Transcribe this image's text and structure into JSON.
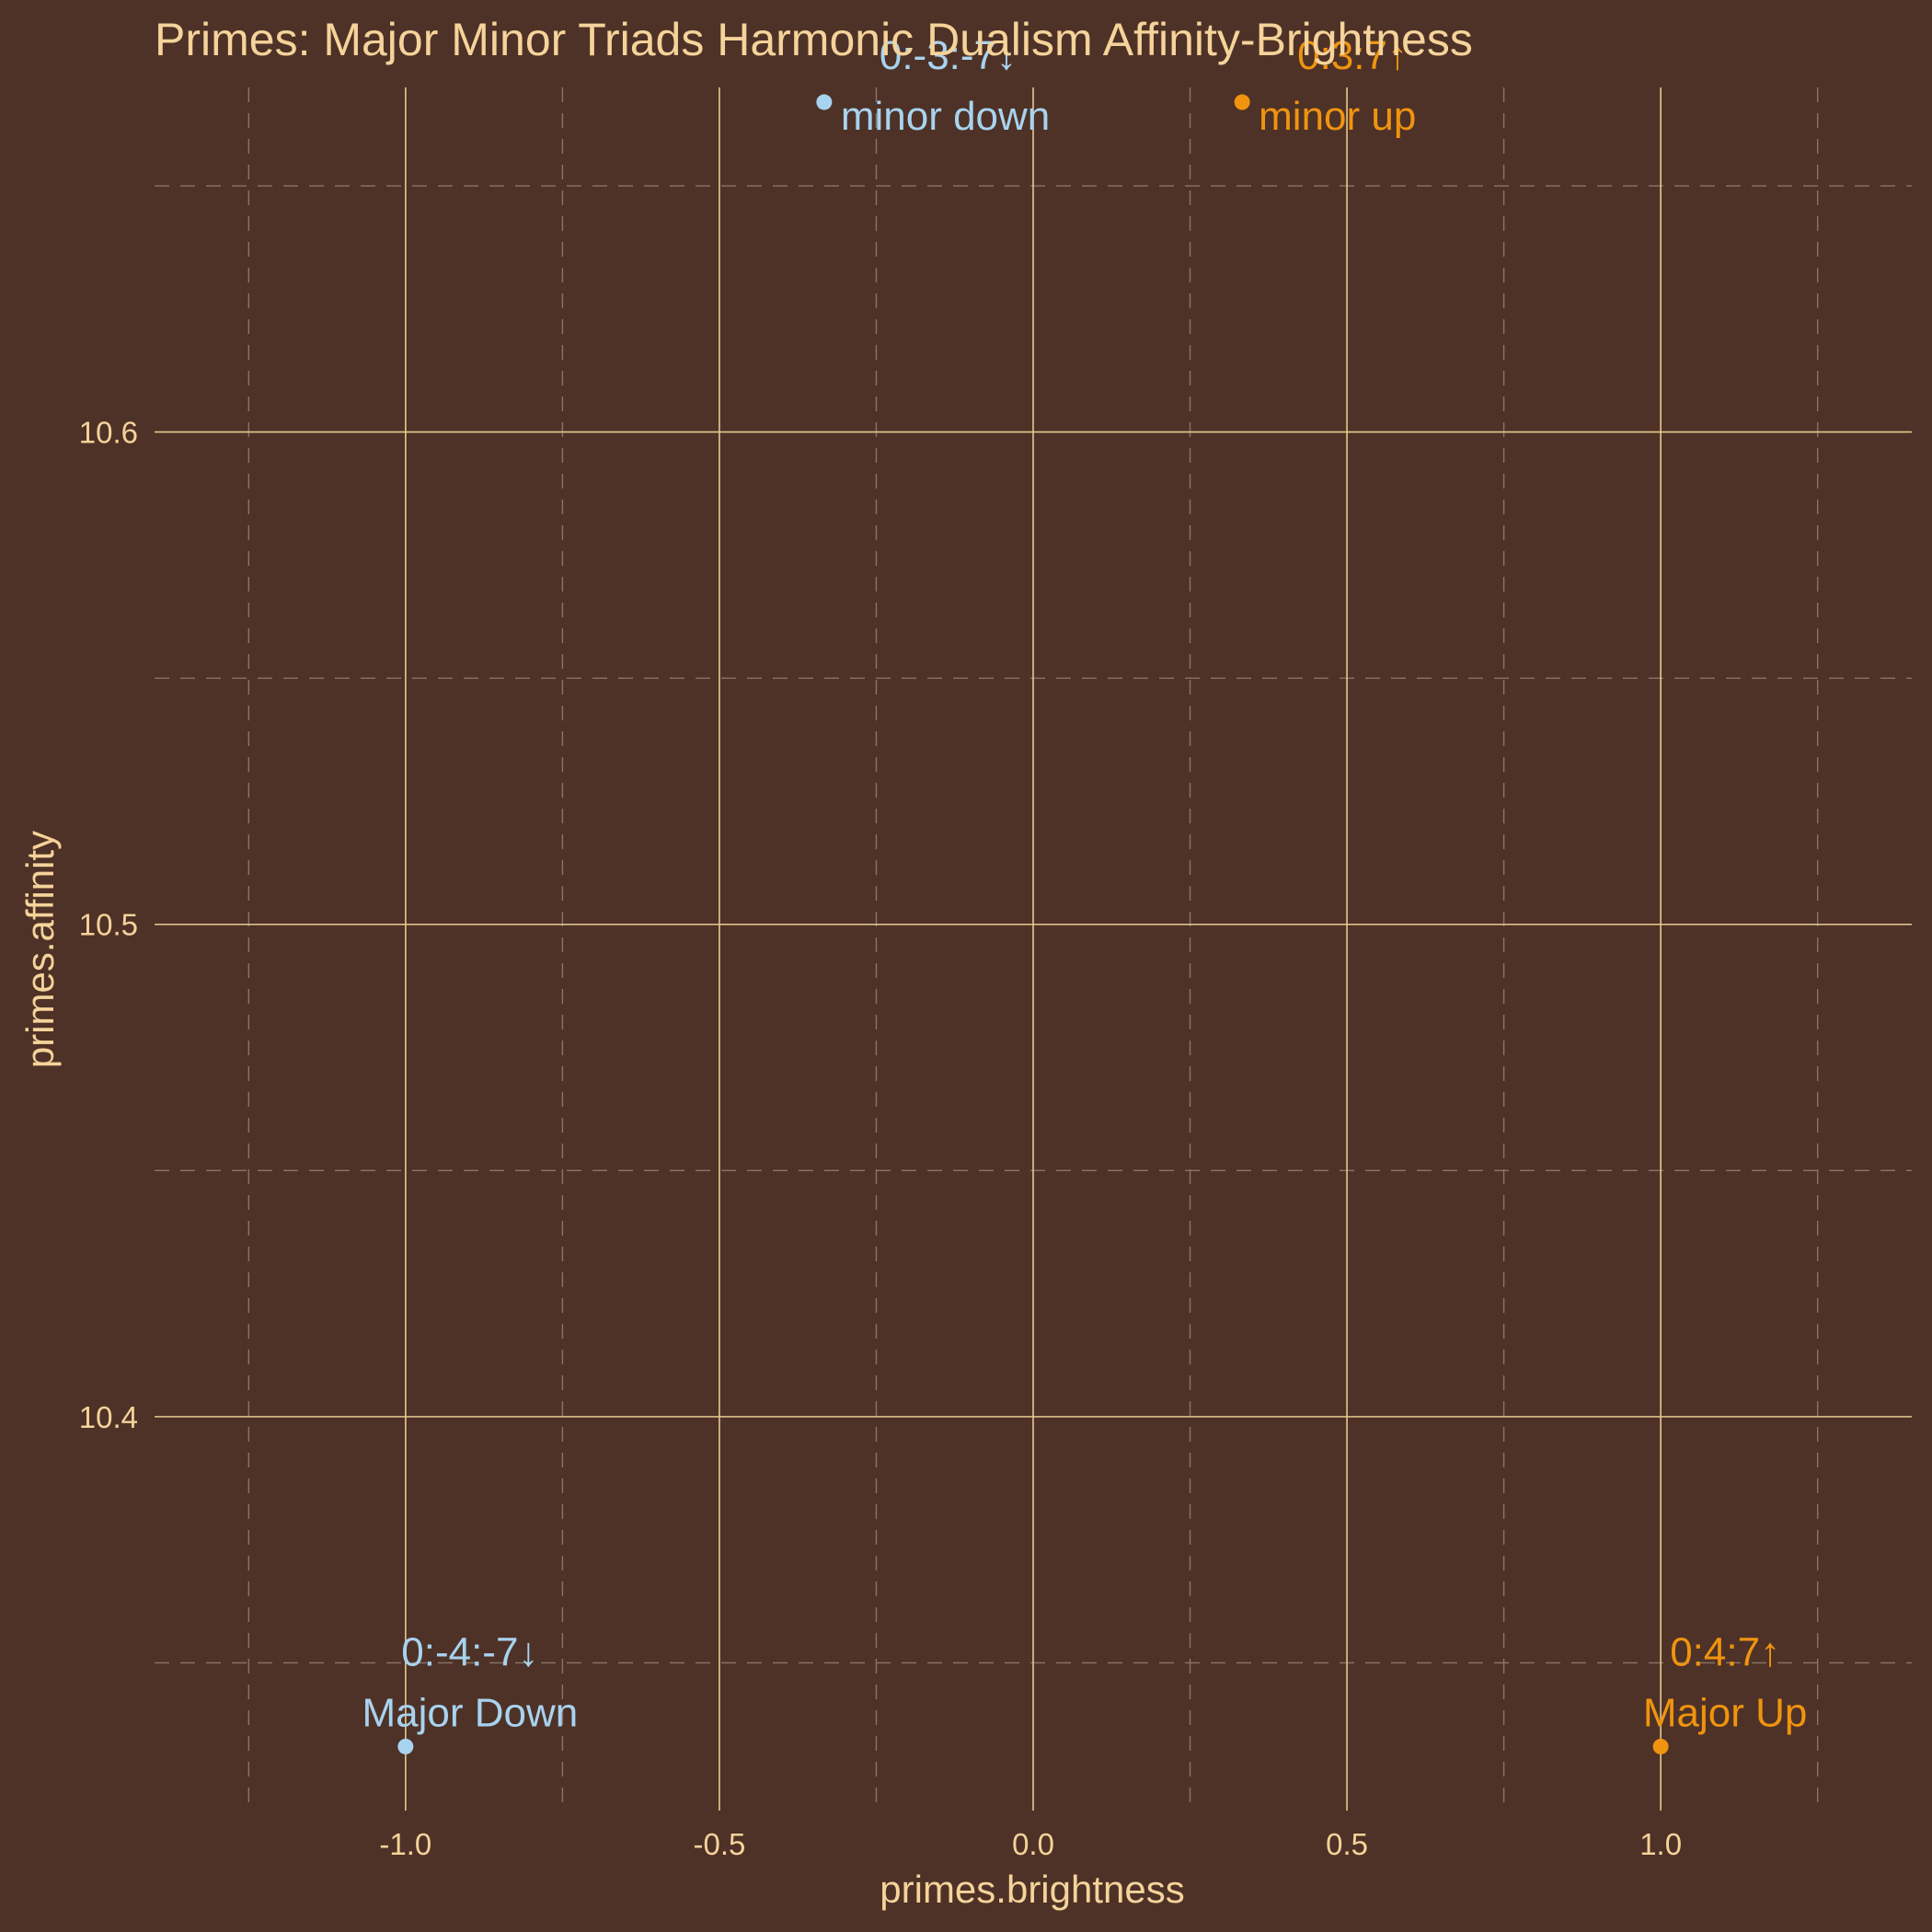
{
  "chart_data": {
    "type": "scatter",
    "title": "Primes: Major Minor Triads Harmonic Dualism Affinity-Brightness",
    "xlabel": "primes.brightness",
    "ylabel": "primes.affinity",
    "xlim": [
      -1.4,
      1.4
    ],
    "ylim": [
      10.32,
      10.67
    ],
    "x_ticks": [
      "-1.0",
      "-0.5",
      "0.0",
      "0.5",
      "1.0"
    ],
    "y_ticks": [
      "10.4",
      "10.5",
      "10.6"
    ],
    "grid": true,
    "colors": {
      "down": "#a8d3f0",
      "up": "#f0940f",
      "text": "#f5d39a",
      "background": "#4e3227"
    },
    "points": [
      {
        "name": "Major Down",
        "label": "0:-4:-7↓",
        "x": -1.0,
        "y": 10.333,
        "group": "down"
      },
      {
        "name": "minor down",
        "label": "0:-3:-7↓",
        "x": -0.333,
        "y": 10.667,
        "group": "down"
      },
      {
        "name": "minor up",
        "label": "0:3:7↑",
        "x": 0.333,
        "y": 10.667,
        "group": "up"
      },
      {
        "name": "Major Up",
        "label": "0:4:7↑",
        "x": 1.0,
        "y": 10.333,
        "group": "up"
      }
    ]
  }
}
